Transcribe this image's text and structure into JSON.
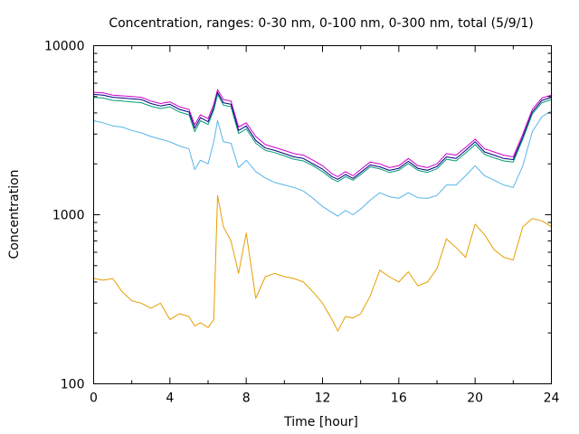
{
  "chart_data": {
    "type": "line",
    "title": "Concentration, ranges: 0-30 nm, 0-100 nm, 0-300 nm, total (5/9/1)",
    "xlabel": "Time [hour]",
    "ylabel": "Concentration",
    "xlim": [
      0,
      24
    ],
    "ylim": [
      100,
      10000
    ],
    "yscale": "log",
    "grid": false,
    "legend": "none",
    "x_ticks": [
      0,
      4,
      8,
      12,
      16,
      20,
      24
    ],
    "x_tick_labels": [
      "0",
      "4",
      "8",
      "12",
      "16",
      "20",
      "24"
    ],
    "y_ticks": [
      100,
      1000,
      10000
    ],
    "y_tick_labels": [
      "100",
      "1000",
      "10000"
    ],
    "x": [
      0,
      0.5,
      1,
      1.5,
      2,
      2.5,
      3,
      3.5,
      4,
      4.5,
      5,
      5.3,
      5.6,
      6,
      6.3,
      6.5,
      6.8,
      7.2,
      7.6,
      8,
      8.5,
      9,
      9.5,
      10,
      10.5,
      11,
      11.5,
      12,
      12.5,
      12.8,
      13.2,
      13.6,
      14,
      14.5,
      15,
      15.5,
      16,
      16.5,
      17,
      17.5,
      18,
      18.5,
      19,
      19.5,
      20,
      20.5,
      21,
      21.5,
      22,
      22.5,
      23,
      23.5,
      24
    ],
    "series": [
      {
        "color": "#cc00cc",
        "values": [
          5300,
          5250,
          5100,
          5050,
          5000,
          4950,
          4700,
          4550,
          4650,
          4350,
          4200,
          3400,
          3900,
          3700,
          4500,
          5500,
          4800,
          4700,
          3300,
          3500,
          2900,
          2600,
          2500,
          2400,
          2300,
          2250,
          2100,
          1950,
          1750,
          1680,
          1800,
          1700,
          1850,
          2050,
          2000,
          1900,
          1950,
          2150,
          1950,
          1900,
          2000,
          2300,
          2250,
          2500,
          2800,
          2450,
          2350,
          2250,
          2200,
          3000,
          4200,
          4900,
          5100
        ]
      },
      {
        "color": "#000080",
        "values": [
          5150,
          5100,
          4950,
          4900,
          4850,
          4800,
          4550,
          4400,
          4500,
          4200,
          4050,
          3250,
          3750,
          3550,
          4300,
          5300,
          4600,
          4500,
          3150,
          3350,
          2750,
          2480,
          2400,
          2300,
          2200,
          2150,
          2000,
          1860,
          1680,
          1620,
          1730,
          1640,
          1780,
          1970,
          1920,
          1830,
          1880,
          2070,
          1880,
          1830,
          1930,
          2200,
          2150,
          2400,
          2700,
          2350,
          2250,
          2150,
          2120,
          2880,
          4050,
          4750,
          4950
        ]
      },
      {
        "color": "#009e73",
        "values": [
          4950,
          4900,
          4750,
          4700,
          4650,
          4600,
          4380,
          4250,
          4350,
          4050,
          3900,
          3100,
          3600,
          3420,
          4150,
          5150,
          4450,
          4350,
          3020,
          3220,
          2650,
          2400,
          2330,
          2230,
          2130,
          2080,
          1950,
          1800,
          1630,
          1570,
          1680,
          1600,
          1730,
          1920,
          1870,
          1780,
          1830,
          2010,
          1830,
          1780,
          1870,
          2130,
          2080,
          2320,
          2600,
          2270,
          2170,
          2080,
          2050,
          2800,
          3950,
          4600,
          4800
        ]
      },
      {
        "color": "#56b4e9",
        "values": [
          3600,
          3500,
          3350,
          3300,
          3150,
          3050,
          2900,
          2800,
          2700,
          2550,
          2450,
          1850,
          2100,
          2000,
          2700,
          3600,
          2700,
          2650,
          1900,
          2100,
          1800,
          1650,
          1550,
          1500,
          1450,
          1380,
          1250,
          1120,
          1030,
          980,
          1060,
          1000,
          1080,
          1220,
          1350,
          1280,
          1250,
          1350,
          1260,
          1250,
          1300,
          1500,
          1500,
          1700,
          1950,
          1700,
          1600,
          1500,
          1450,
          1950,
          3100,
          3800,
          4100
        ]
      },
      {
        "color": "#e69f00",
        "values": [
          420,
          410,
          420,
          350,
          310,
          300,
          280,
          300,
          240,
          260,
          250,
          220,
          230,
          215,
          240,
          1300,
          850,
          700,
          450,
          780,
          320,
          430,
          450,
          430,
          420,
          400,
          350,
          300,
          240,
          205,
          250,
          245,
          260,
          330,
          470,
          430,
          400,
          460,
          380,
          400,
          480,
          720,
          640,
          560,
          880,
          760,
          620,
          560,
          540,
          850,
          950,
          920,
          850
        ]
      }
    ]
  }
}
